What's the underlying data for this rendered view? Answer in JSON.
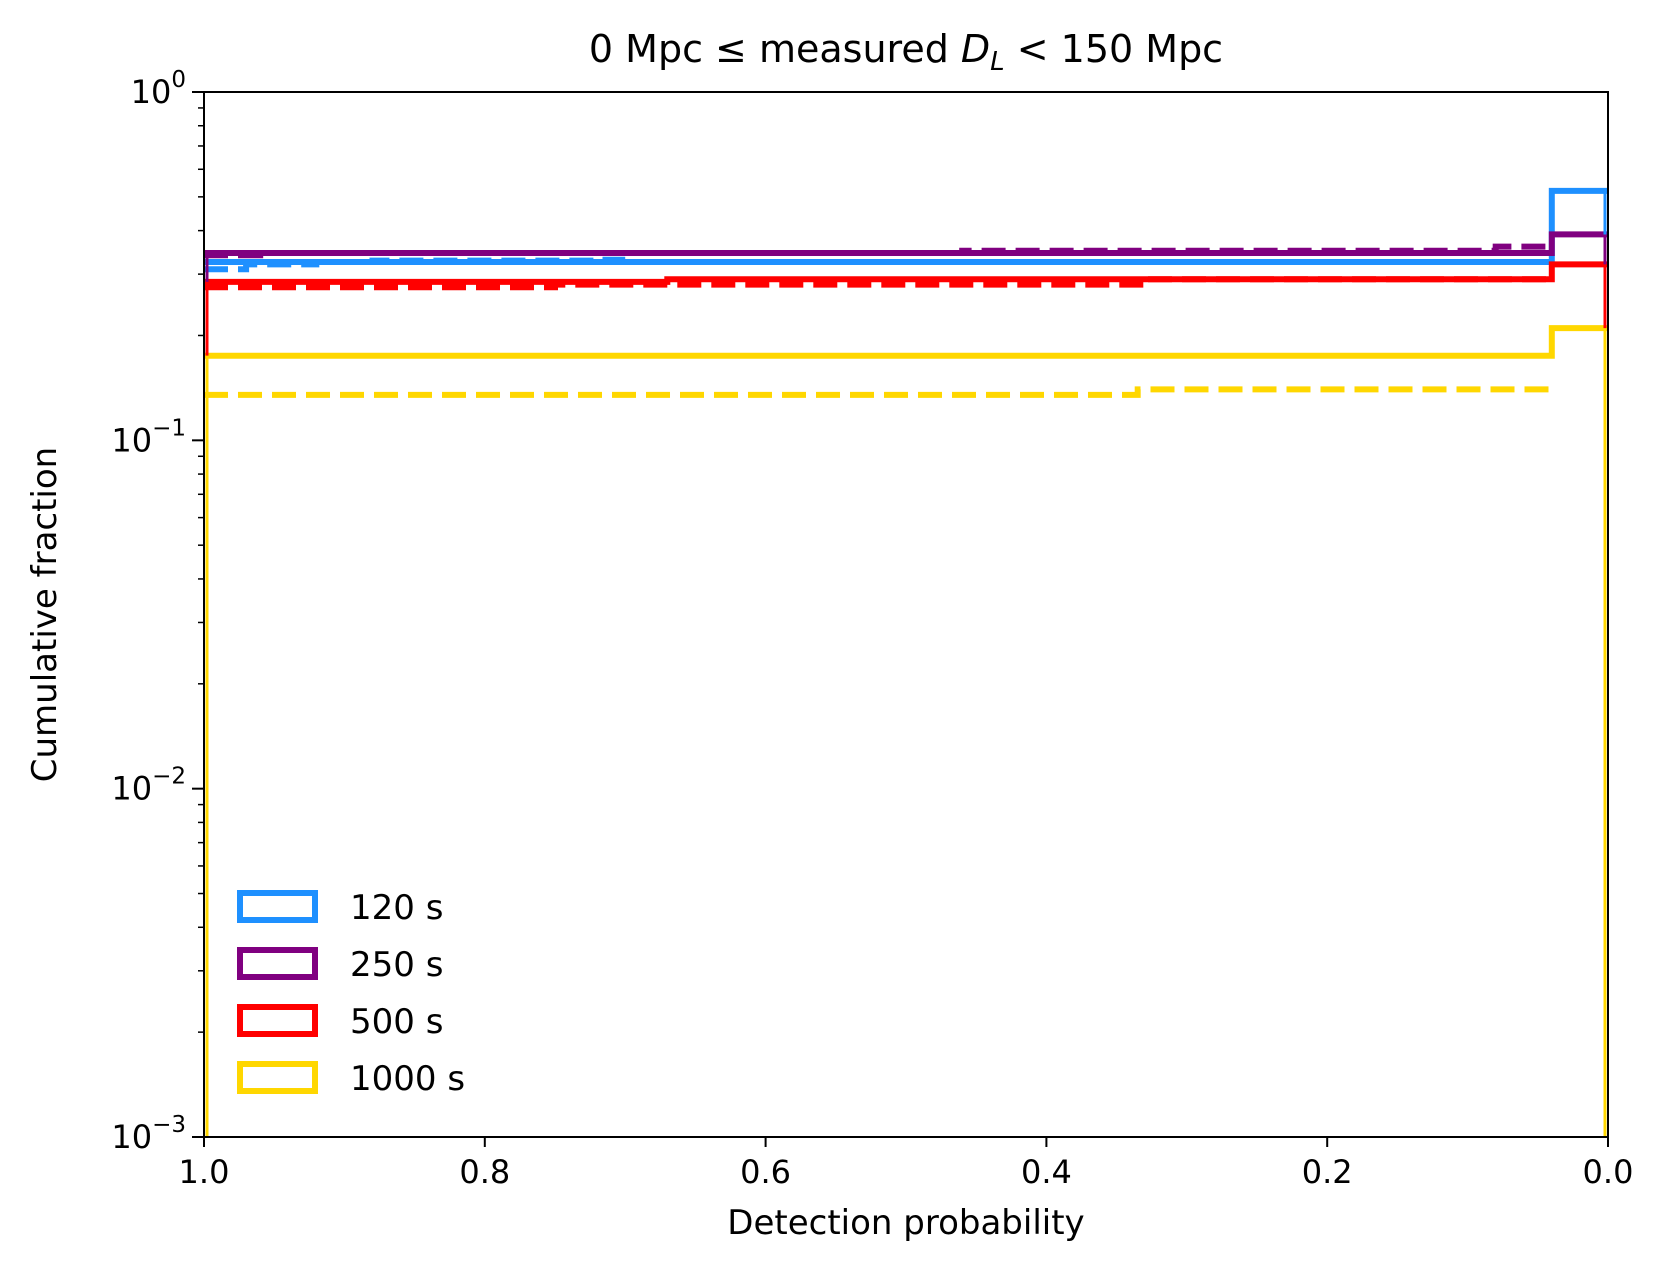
{
  "chart_data": {
    "type": "line",
    "title": {
      "prefix": "0 Mpc",
      "symbol": "≤",
      "middle": "measured",
      "var": "D",
      "sub": "L",
      "suffix": "< 150 Mpc"
    },
    "xlabel": "Detection probability",
    "ylabel": "Cumulative fraction",
    "x_scale": "linear",
    "x_reversed": true,
    "xlim": [
      1.0,
      0.0
    ],
    "x_ticks": [
      {
        "value": 1.0,
        "label": "1.0"
      },
      {
        "value": 0.8,
        "label": "0.8"
      },
      {
        "value": 0.6,
        "label": "0.6"
      },
      {
        "value": 0.4,
        "label": "0.4"
      },
      {
        "value": 0.2,
        "label": "0.2"
      },
      {
        "value": 0.0,
        "label": "0.0"
      }
    ],
    "y_scale": "log",
    "ylim": [
      0.001,
      1
    ],
    "y_ticks": [
      {
        "value": 1,
        "base": "10",
        "exp": "0"
      },
      {
        "value": 0.1,
        "base": "10",
        "exp": "−1"
      },
      {
        "value": 0.01,
        "base": "10",
        "exp": "−2"
      },
      {
        "value": 0.001,
        "base": "10",
        "exp": "−3"
      }
    ],
    "grid": false,
    "legend_position": "lower-left",
    "series": [
      {
        "name": "120 s",
        "color": "#1e90ff",
        "style": "solid",
        "x": [
          1.0,
          0.04,
          0.04,
          0.0
        ],
        "y": [
          0.325,
          0.325,
          0.52,
          0.52
        ]
      },
      {
        "name": "120 s",
        "color": "#1e90ff",
        "style": "dashed",
        "x": [
          1.0,
          0.97,
          0.97,
          0.92,
          0.92,
          0.88,
          0.88,
          0.72,
          0.72,
          0.7
        ],
        "y": [
          0.31,
          0.31,
          0.32,
          0.32,
          0.325,
          0.325,
          0.328,
          0.328,
          0.33,
          0.33
        ]
      },
      {
        "name": "250 s",
        "color": "#800080",
        "style": "solid",
        "x": [
          1.0,
          0.04,
          0.04,
          0.0
        ],
        "y": [
          0.345,
          0.345,
          0.39,
          0.39
        ]
      },
      {
        "name": "250 s",
        "color": "#800080",
        "style": "dashed",
        "x": [
          1.0,
          0.96,
          0.96,
          0.46,
          0.46,
          0.08,
          0.08,
          0.04
        ],
        "y": [
          0.34,
          0.34,
          0.345,
          0.345,
          0.35,
          0.35,
          0.36,
          0.36
        ]
      },
      {
        "name": "500 s",
        "color": "#ff0000",
        "style": "solid",
        "x": [
          1.0,
          0.67,
          0.67,
          0.04,
          0.04,
          0.0
        ],
        "y": [
          0.285,
          0.285,
          0.29,
          0.29,
          0.32,
          0.32
        ]
      },
      {
        "name": "500 s",
        "color": "#ff0000",
        "style": "dashed",
        "x": [
          1.0,
          0.75,
          0.75,
          0.33,
          0.33,
          0.04
        ],
        "y": [
          0.275,
          0.275,
          0.28,
          0.28,
          0.29,
          0.29
        ]
      },
      {
        "name": "1000 s",
        "color": "#ffd700",
        "style": "solid",
        "x": [
          1.0,
          0.04,
          0.04,
          0.0
        ],
        "y": [
          0.175,
          0.175,
          0.21,
          0.21
        ]
      },
      {
        "name": "1000 s",
        "color": "#ffd700",
        "style": "dashed",
        "x": [
          1.0,
          0.335,
          0.335,
          0.04
        ],
        "y": [
          0.135,
          0.135,
          0.14,
          0.14
        ]
      }
    ],
    "legend": [
      {
        "label": "120 s",
        "color": "#1e90ff"
      },
      {
        "label": "250 s",
        "color": "#800080"
      },
      {
        "label": "500 s",
        "color": "#ff0000"
      },
      {
        "label": "1000 s",
        "color": "#ffd700"
      }
    ]
  }
}
